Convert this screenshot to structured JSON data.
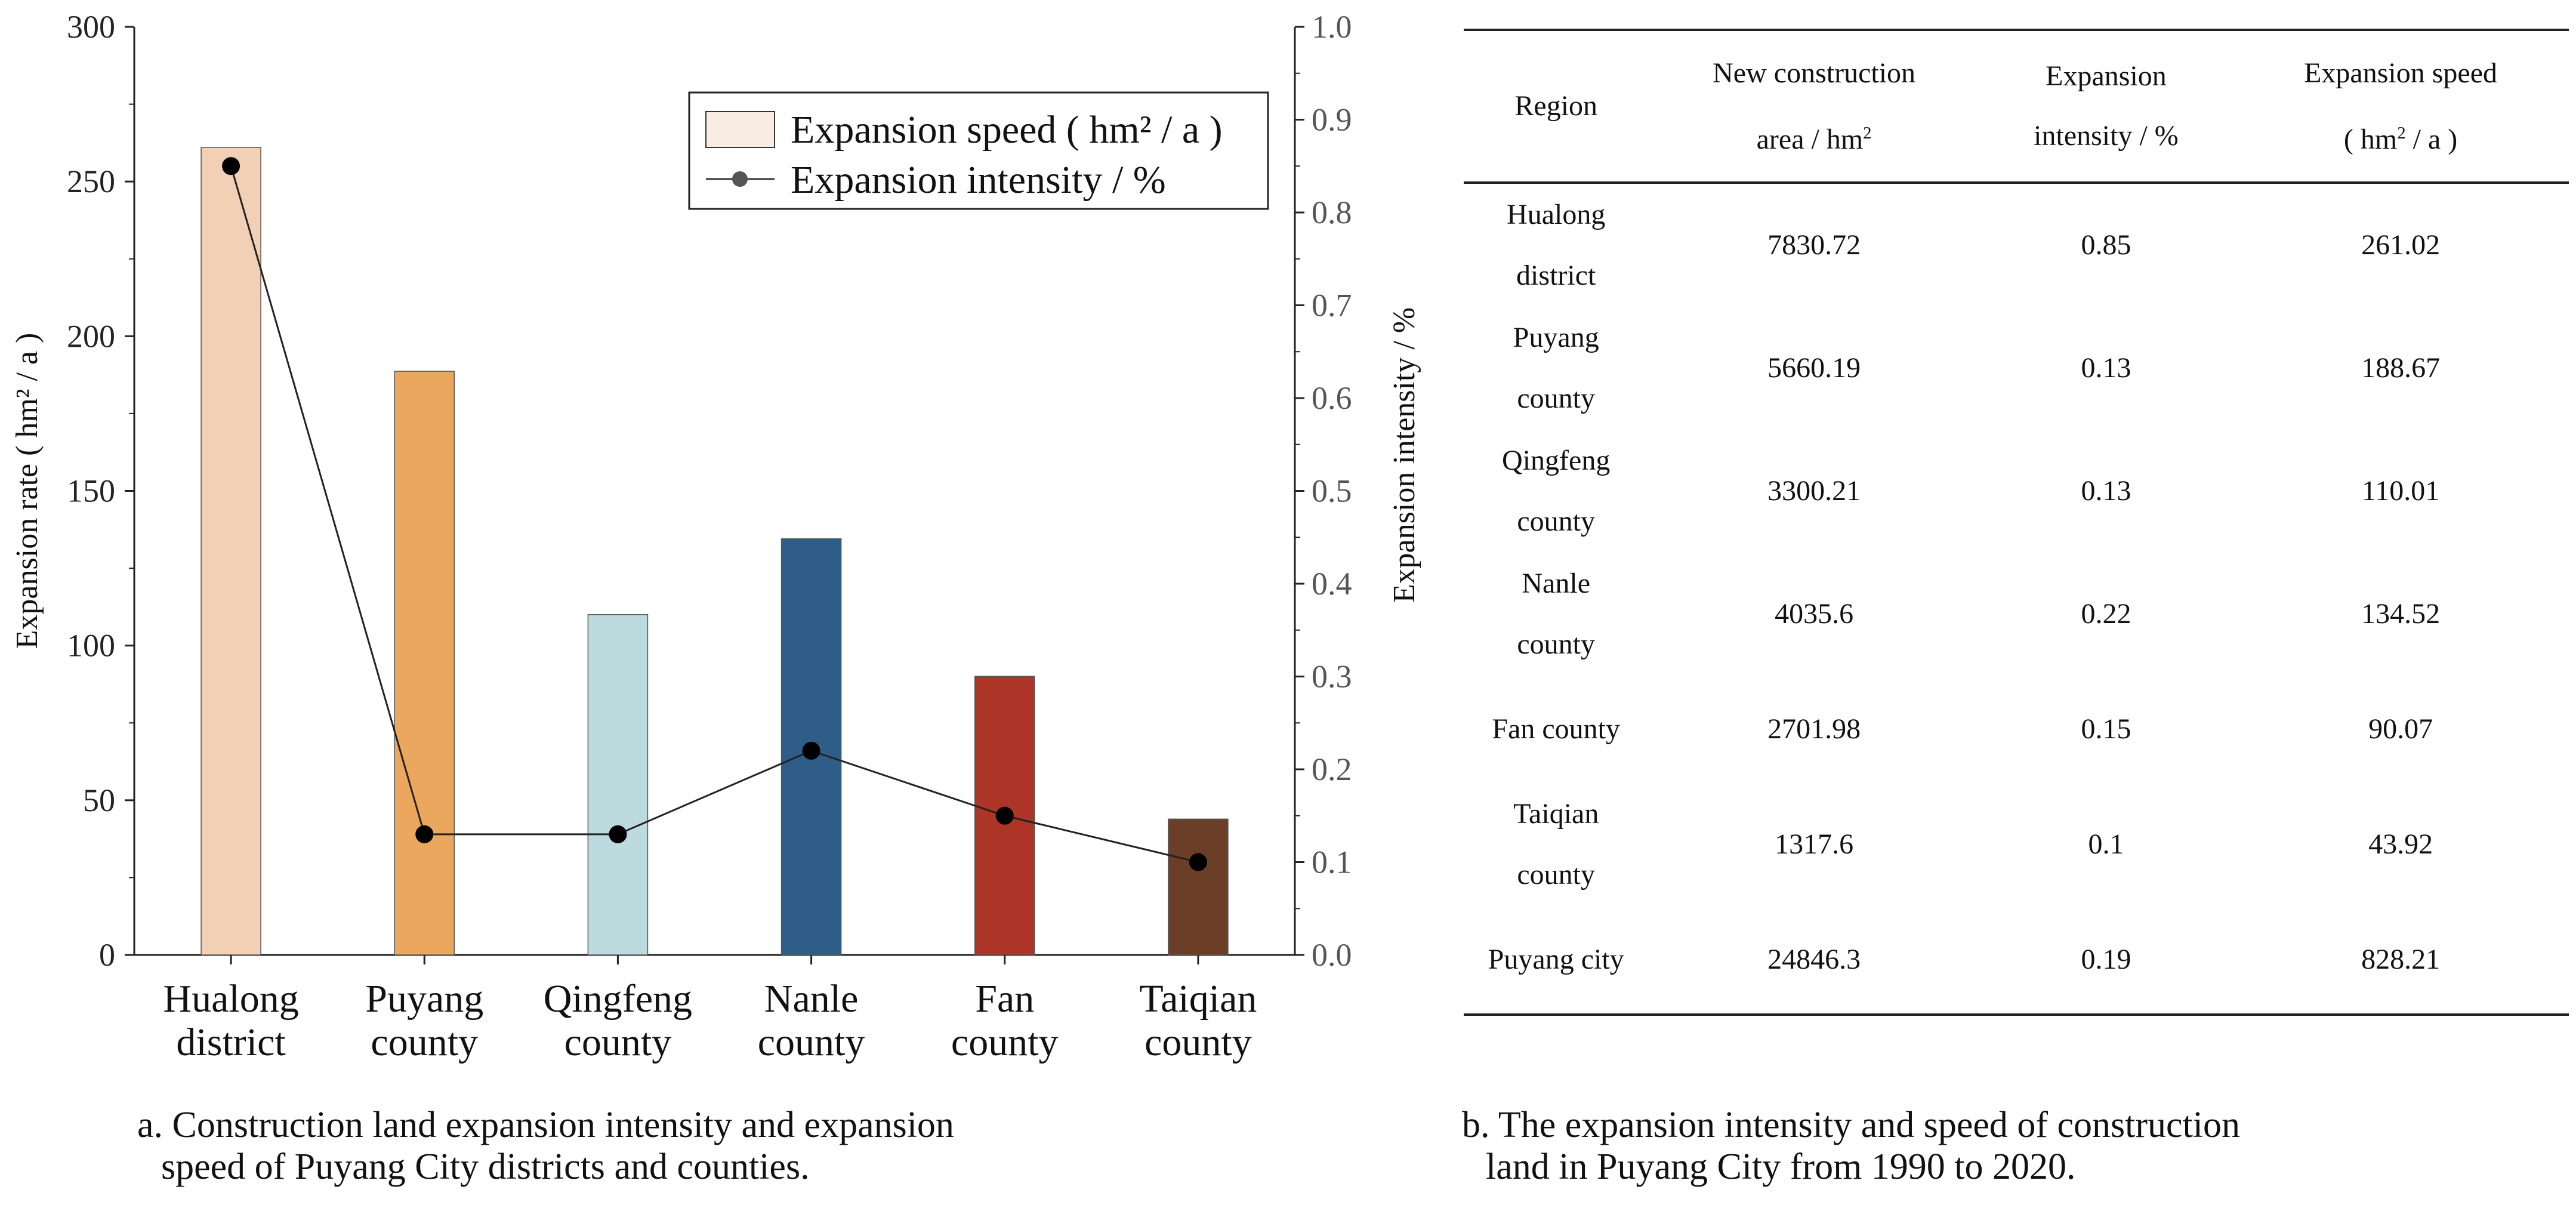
{
  "chart_data": {
    "type": "bar",
    "categories": [
      [
        "Hualong",
        "district"
      ],
      [
        "Puyang",
        "county"
      ],
      [
        "Qingfeng",
        "county"
      ],
      [
        "Nanle",
        "county"
      ],
      [
        "Fan",
        "county"
      ],
      [
        "Taiqian",
        "county"
      ]
    ],
    "series": [
      {
        "name": "Expansion speed ( hm² / a )",
        "kind": "bar",
        "axis": "left",
        "values": [
          261.02,
          188.67,
          110.01,
          134.52,
          90.07,
          43.92
        ]
      },
      {
        "name": "Expansion intensity / %",
        "kind": "line",
        "axis": "right",
        "values": [
          0.85,
          0.13,
          0.13,
          0.22,
          0.15,
          0.1
        ]
      }
    ],
    "bar_colors": [
      "#f1d0b5",
      "#eba75d",
      "#bddbdf",
      "#2e5e87",
      "#ad3528",
      "#6b3e28"
    ],
    "line_color": "#222222",
    "ylabel": "Expansion rate ( hm² / a )",
    "y2label": "Expansion intensity / %",
    "ylim": [
      0,
      300
    ],
    "y2lim": [
      0,
      1.0
    ],
    "yticks": [
      "0",
      "50",
      "100",
      "150",
      "200",
      "250",
      "300"
    ],
    "y2ticks": [
      "0.0",
      "0.1",
      "0.2",
      "0.3",
      "0.4",
      "0.5",
      "0.6",
      "0.7",
      "0.8",
      "0.9",
      "1.0"
    ],
    "legend_position": "top-right",
    "grid": false
  },
  "captions": {
    "a_line1": "a. Construction land expansion intensity and expansion",
    "a_line2": "speed of Puyang City districts and counties.",
    "b_line1": "b. The expansion intensity and speed of construction",
    "b_line2": "land in Puyang City from 1990 to 2020."
  },
  "table": {
    "headers": {
      "region": "Region",
      "area_1": "New construction",
      "area_2": "area / hm",
      "area_sup": "2",
      "intensity_1": "Expansion",
      "intensity_2": "intensity / %",
      "speed_1": "Expansion speed",
      "speed_2a": "( hm",
      "speed_sup": "2",
      "speed_2b": " / a )"
    },
    "rows": [
      {
        "region": [
          "Hualong",
          "district"
        ],
        "area": "7830.72",
        "intensity": "0.85",
        "speed": "261.02"
      },
      {
        "region": [
          "Puyang",
          "county"
        ],
        "area": "5660.19",
        "intensity": "0.13",
        "speed": "188.67"
      },
      {
        "region": [
          "Qingfeng",
          "county"
        ],
        "area": "3300.21",
        "intensity": "0.13",
        "speed": "110.01"
      },
      {
        "region": [
          "Nanle",
          "county"
        ],
        "area": "4035.6",
        "intensity": "0.22",
        "speed": "134.52"
      },
      {
        "region": [
          "Fan county"
        ],
        "area": "2701.98",
        "intensity": "0.15",
        "speed": "90.07"
      },
      {
        "region": [
          "Taiqian",
          "county"
        ],
        "area": "1317.6",
        "intensity": "0.1",
        "speed": "43.92"
      },
      {
        "region": [
          "Puyang city"
        ],
        "area": "24846.3",
        "intensity": "0.19",
        "speed": "828.21"
      }
    ]
  }
}
